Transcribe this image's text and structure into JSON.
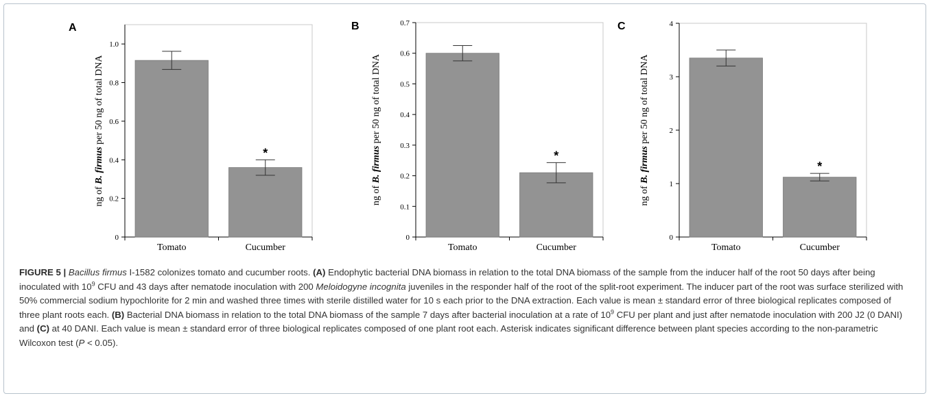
{
  "chart_data": [
    {
      "panel": "A",
      "type": "bar",
      "categories": [
        "Tomato",
        "Cucumber"
      ],
      "values": [
        0.915,
        0.36
      ],
      "errors": [
        0.047,
        0.04
      ],
      "significant": [
        false,
        true
      ],
      "ylabel_prefix": "ng of ",
      "ylabel_italic": "B. firmus",
      "ylabel_suffix": " per 50 ng of total DNA",
      "ylim": [
        0,
        1.1
      ],
      "yticks": [
        0,
        0.2,
        0.4,
        0.6,
        0.8,
        1.0
      ],
      "ytick_labels": [
        "0",
        "0.2",
        "0.4",
        "0.6",
        "0.8",
        "1.0"
      ],
      "color": "#939393"
    },
    {
      "panel": "B",
      "type": "bar",
      "categories": [
        "Tomato",
        "Cucumber"
      ],
      "values": [
        0.6,
        0.21
      ],
      "errors": [
        0.025,
        0.033
      ],
      "significant": [
        false,
        true
      ],
      "ylabel_prefix": "ng of ",
      "ylabel_italic": "B. firmus",
      "ylabel_suffix": " per 50 ng of total DNA",
      "ylim": [
        0,
        0.7
      ],
      "yticks": [
        0,
        0.1,
        0.2,
        0.3,
        0.4,
        0.5,
        0.6,
        0.7
      ],
      "ytick_labels": [
        "0",
        "0.1",
        "0.2",
        "0.3",
        "0.4",
        "0.5",
        "0.6",
        "0.7"
      ],
      "color": "#939393"
    },
    {
      "panel": "C",
      "type": "bar",
      "categories": [
        "Tomato",
        "Cucumber"
      ],
      "values": [
        3.35,
        1.12
      ],
      "errors": [
        0.15,
        0.07
      ],
      "significant": [
        false,
        true
      ],
      "ylabel_prefix": "ng of ",
      "ylabel_italic": "B. firmus",
      "ylabel_suffix": " per 50 ng of total DNA",
      "ylim": [
        0,
        4
      ],
      "yticks": [
        0,
        1,
        2,
        3,
        4
      ],
      "ytick_labels": [
        "0",
        "1",
        "2",
        "3",
        "4"
      ],
      "color": "#939393"
    }
  ],
  "significance_marker": "*",
  "caption": {
    "figure_label": "FIGURE 5 | ",
    "title_italic": "Bacillus firmus",
    "title_rest": " I-1582 colonizes tomato and cucumber roots. ",
    "a_label": "(A)",
    "a_text_1": " Endophytic bacterial DNA biomass in relation to the total DNA biomass of the sample from the inducer half of the root 50 days after being inoculated with 10",
    "a_sup": "9",
    "a_text_2": " CFU and 43 days after nematode inoculation with 200 ",
    "a_italic": "Meloidogyne incognita",
    "a_text_3": " juveniles in the responder half of the root of the split-root experiment. The inducer part of the root was surface sterilized with 50% commercial sodium hypochlorite for 2 min and washed three times with sterile distilled water for 10 s each prior to the DNA extraction. Each value is mean ± standard error of three biological replicates composed of three plant roots each. ",
    "b_label": "(B)",
    "b_text_1": " Bacterial DNA biomass in relation to the total DNA biomass of the sample 7 days after bacterial inoculation at a rate of 10",
    "b_sup": "9",
    "b_text_2": " CFU per plant and just after nematode inoculation with 200 J2 (0 DANI) and ",
    "c_label": "(C)",
    "c_text_1": " at 40 DANI. Each value is mean ± standard error of three biological replicates composed of one plant root each. Asterisk indicates significant difference between plant species according to the non-parametric Wilcoxon test (",
    "c_italic": "P",
    "c_text_2": " < 0.05)."
  }
}
